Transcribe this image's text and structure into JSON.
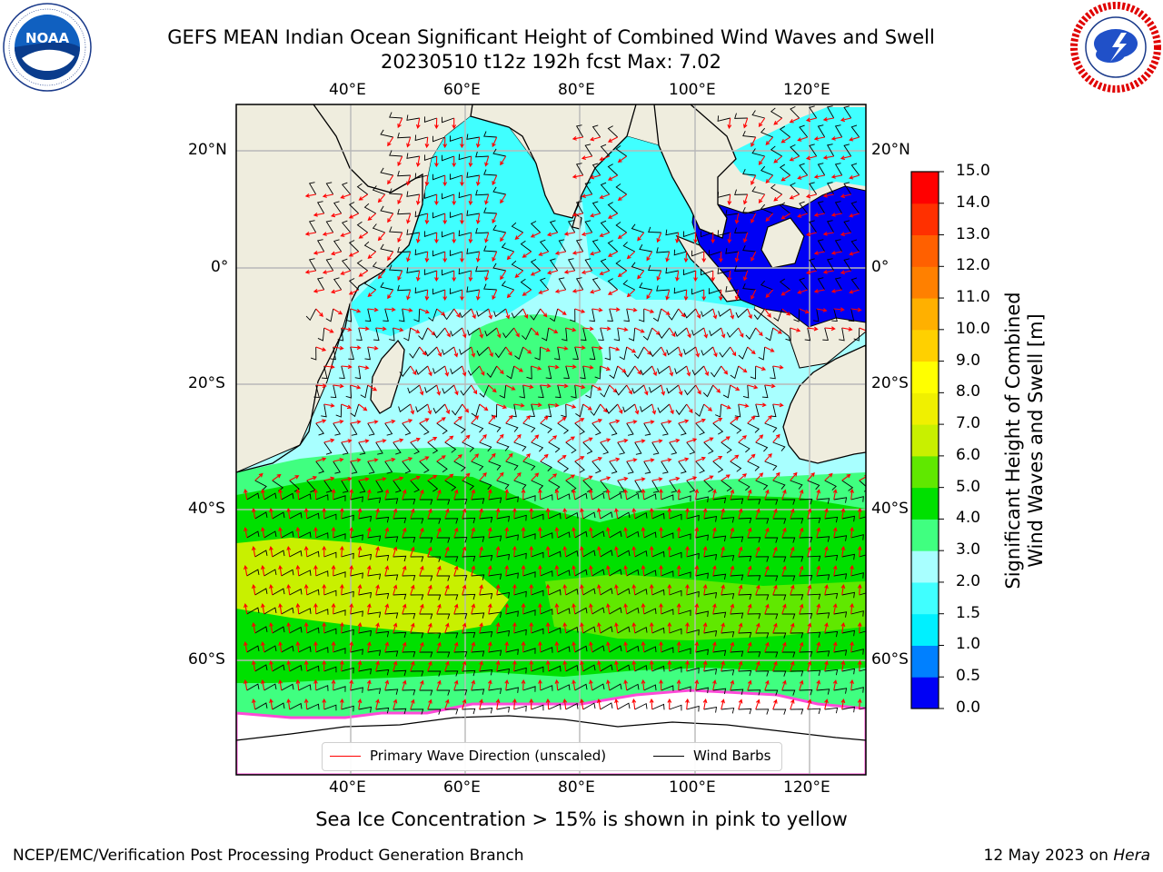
{
  "title": {
    "line1": "GEFS MEAN Indian Ocean Significant Height of Combined Wind Waves and Swell",
    "line2": "20230510 t12z 192h fcst   Max: 7.02"
  },
  "logos": {
    "left": {
      "name": "NOAA",
      "ring_text": "NATIONAL OCEANIC AND ATMOSPHERIC ADMINISTRATION · U.S. DEPARTMENT OF COMMERCE"
    },
    "right": {
      "name": "NATIONAL WEATHER SERVICE"
    }
  },
  "map": {
    "region": "Indian Ocean",
    "projection": "Mercator",
    "lon_range": [
      20,
      130
    ],
    "lat_range": [
      -73,
      28
    ],
    "grid": true,
    "lon_ticks": [
      "40°E",
      "60°E",
      "80°E",
      "100°E",
      "120°E"
    ],
    "lat_ticks": [
      "20°N",
      "0°",
      "20°S",
      "40°S",
      "60°S"
    ],
    "land_color": "#efedde",
    "ice_color": "#ffffff",
    "variable": "Significant Height of Combined Wind Waves and Swell",
    "field_max": 7.02,
    "overlays": [
      "Primary Wave Direction (unscaled)",
      "Wind Barbs"
    ]
  },
  "colorbar": {
    "label": "Significant Height of Combined Wind Waves and Swell [m]",
    "ticks": [
      "0.0",
      "0.5",
      "1.0",
      "1.5",
      "2.0",
      "3.0",
      "4.0",
      "5.0",
      "6.0",
      "7.0",
      "8.0",
      "9.0",
      "10.0",
      "11.0",
      "12.0",
      "13.0",
      "14.0",
      "15.0"
    ],
    "colors": [
      "#0000f5",
      "#0080ff",
      "#00f0ff",
      "#40ffff",
      "#a8ffff",
      "#40ff80",
      "#00e000",
      "#60e800",
      "#c8f000",
      "#f0f000",
      "#ffff00",
      "#ffd000",
      "#ffb000",
      "#ff8000",
      "#ff6000",
      "#ff3000",
      "#ff0000"
    ]
  },
  "legend": {
    "wave_direction": "Primary Wave Direction (unscaled)",
    "wind_barbs": "Wind Barbs",
    "wave_color": "#ff0000",
    "barb_color": "#000000"
  },
  "caption": "Sea Ice Concentration > 15% is shown in pink to yellow",
  "footer": {
    "left": "NCEP/EMC/Verification Post Processing Product Generation Branch",
    "date": "12 May 2023 on ",
    "host": "Hera"
  }
}
